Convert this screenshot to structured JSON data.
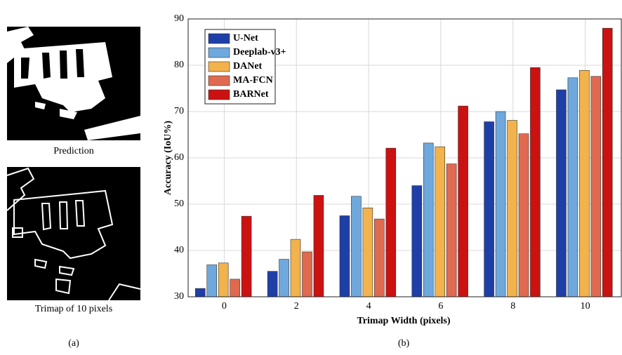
{
  "panels": {
    "prediction_caption": "Prediction",
    "trimap_caption": "Trimap of 10 pixels",
    "label_a": "(a)",
    "label_b": "(b)"
  },
  "chart_data": {
    "type": "bar",
    "xlabel": "Trimap Width (pixels)",
    "ylabel": "Accuracy (IoU%)",
    "categories": [
      "0",
      "2",
      "4",
      "6",
      "8",
      "10"
    ],
    "series": [
      {
        "name": "U-Net",
        "color": "#1f3fa8",
        "values": [
          31.8,
          35.5,
          47.5,
          54.0,
          67.8,
          74.7
        ]
      },
      {
        "name": "Deeplab-v3+",
        "color": "#6fa8dc",
        "values": [
          36.9,
          38.1,
          51.7,
          63.2,
          70.0,
          77.3
        ]
      },
      {
        "name": "DANet",
        "color": "#f2b24c",
        "values": [
          37.3,
          42.4,
          49.2,
          62.4,
          68.1,
          78.9
        ]
      },
      {
        "name": "MA-FCN",
        "color": "#e06a50",
        "values": [
          33.8,
          39.7,
          46.8,
          58.7,
          65.2,
          77.6
        ]
      },
      {
        "name": "BARNet",
        "color": "#cc1111",
        "values": [
          47.4,
          51.9,
          62.1,
          71.2,
          79.5,
          88.0
        ]
      }
    ],
    "ylim": [
      30,
      90
    ],
    "yticks": [
      30,
      40,
      50,
      60,
      70,
      80,
      90
    ],
    "grid": true,
    "legend": "top-left"
  }
}
